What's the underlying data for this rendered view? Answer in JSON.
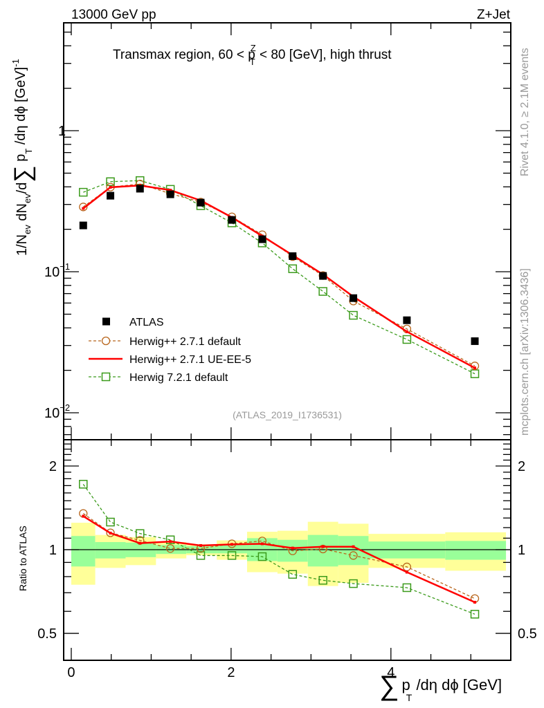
{
  "header": {
    "left": "13000 GeV pp",
    "right": "Z+Jet"
  },
  "side": {
    "rivet": "Rivet 4.1.0, ≥ 2.1M events",
    "mcplots": "mcplots.cern.ch [arXiv:1306.3436]"
  },
  "title_parts": [
    "Transmax region, 60 < p",
    "T",
    "Z",
    " < 80 [GeV], high thrust"
  ],
  "watermark": "(ATLAS_2019_I1736531)",
  "ylabel_parts": [
    "1/N",
    "ev",
    " dN",
    "ev",
    "/d",
    "∑",
    " p",
    "T",
    " /dη dϕ  [GeV]",
    "-1"
  ],
  "ratio_ylabel": "Ratio to ATLAS",
  "xlabel_parts": [
    "∑",
    "p",
    "T",
    " /dη dϕ [GeV]"
  ],
  "colors": {
    "atlas": "#000000",
    "hpp_default": "#b8651b",
    "hpp_ueee5": "#ff0000",
    "h7_default": "#3a9a1a",
    "band_inner": "#99ff99",
    "band_outer": "#ffff99"
  },
  "chart_data": [
    {
      "type": "scatter",
      "panel": "main",
      "title": "Transmax region, 60 < pT^Z < 80 [GeV], high thrust",
      "xlabel": "∑ pT /dη dϕ [GeV]",
      "ylabel": "1/Nev dNev/d∑ pT /dη dϕ [GeV]^-1",
      "yscale": "log",
      "xlim": [
        -0.095,
        5.5
      ],
      "ylim": [
        0.00644,
        5.82
      ],
      "yticks": [
        {
          "v": 1,
          "label": "1"
        },
        {
          "v": 0.1,
          "label": "10",
          "exp": "−1"
        },
        {
          "v": 0.01,
          "label": "10",
          "exp": "−2"
        }
      ],
      "x": [
        0.15,
        0.49,
        0.86,
        1.24,
        1.62,
        2.01,
        2.39,
        2.77,
        3.15,
        3.53,
        4.2,
        5.05
      ],
      "bin_edges": [
        0,
        0.3,
        0.68,
        1.06,
        1.44,
        1.82,
        2.2,
        2.58,
        2.96,
        3.34,
        3.72,
        4.68,
        5.44
      ],
      "legend_position": "bottom-left",
      "series": [
        {
          "name": "ATLAS",
          "style": "data",
          "values": [
            0.213,
            0.346,
            0.388,
            0.354,
            0.309,
            0.233,
            0.17,
            0.129,
            0.0934,
            0.065,
            0.0453,
            0.0322
          ]
        },
        {
          "name": "Herwig++ 2.7.1 default",
          "style": "circle",
          "values": [
            0.288,
            0.398,
            0.419,
            0.358,
            0.312,
            0.245,
            0.183,
            0.128,
            0.094,
            0.062,
            0.0393,
            0.0215
          ]
        },
        {
          "name": "Herwig++ 2.7.1 UE-EE-5",
          "style": "line",
          "values": [
            0.281,
            0.397,
            0.409,
            0.379,
            0.32,
            0.243,
            0.179,
            0.131,
            0.0957,
            0.0666,
            0.0376,
            0.0208
          ]
        },
        {
          "name": "Herwig 7.2.1 default",
          "style": "square",
          "values": [
            0.366,
            0.435,
            0.443,
            0.384,
            0.294,
            0.222,
            0.16,
            0.105,
            0.0725,
            0.0491,
            0.0331,
            0.0189
          ]
        }
      ]
    },
    {
      "type": "line",
      "panel": "ratio",
      "ylabel": "Ratio to ATLAS",
      "yscale": "log",
      "xlim": [
        -0.095,
        5.5
      ],
      "ylim": [
        0.4,
        2.486
      ],
      "yticks": [
        {
          "v": 2,
          "label": "2"
        },
        {
          "v": 1,
          "label": "1"
        },
        {
          "v": 0.5,
          "label": "0.5"
        }
      ],
      "xticks": [
        {
          "v": 0,
          "label": "0"
        },
        {
          "v": 2,
          "label": "2"
        },
        {
          "v": 4,
          "label": "4"
        }
      ],
      "band_outer": {
        "up": [
          1.25,
          1.13,
          1.11,
          1.065,
          1.045,
          1.08,
          1.16,
          1.17,
          1.26,
          1.24,
          1.14,
          1.155
        ],
        "down": [
          0.748,
          0.86,
          0.88,
          0.93,
          0.955,
          0.92,
          0.83,
          0.82,
          0.74,
          0.76,
          0.86,
          0.84
        ]
      },
      "band_inner": {
        "up": [
          1.12,
          1.065,
          1.06,
          1.04,
          1.03,
          1.04,
          1.1,
          1.085,
          1.13,
          1.12,
          1.07,
          1.075
        ],
        "down": [
          0.87,
          0.93,
          0.94,
          0.965,
          0.97,
          0.97,
          0.91,
          0.905,
          0.87,
          0.88,
          0.93,
          0.92
        ]
      },
      "series": [
        {
          "name": "Herwig++ 2.7.1 default",
          "style": "circle",
          "values": [
            1.35,
            1.15,
            1.08,
            1.01,
            1.01,
            1.05,
            1.075,
            0.99,
            1.006,
            0.953,
            0.867,
            0.667
          ]
        },
        {
          "name": "Herwig++ 2.7.1 UE-EE-5",
          "style": "line",
          "values": [
            1.32,
            1.147,
            1.055,
            1.07,
            1.035,
            1.045,
            1.05,
            1.013,
            1.025,
            1.025,
            0.83,
            0.647
          ]
        },
        {
          "name": "Herwig 7.2.1 default",
          "style": "square",
          "values": [
            1.72,
            1.257,
            1.143,
            1.085,
            0.953,
            0.953,
            0.944,
            0.815,
            0.776,
            0.755,
            0.73,
            0.586
          ]
        }
      ]
    }
  ]
}
